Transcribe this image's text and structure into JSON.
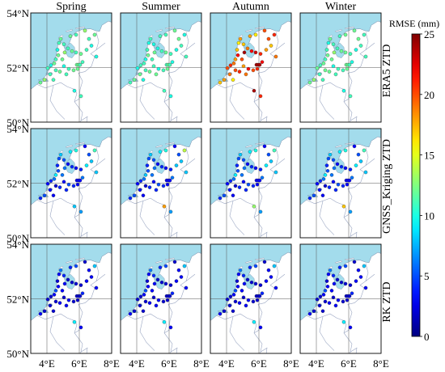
{
  "season_titles": [
    "Spring",
    "Summer",
    "Autumn",
    "Winter"
  ],
  "row_labels": [
    "ERA5 ZTD",
    "GNSS_Kriging ZTD",
    "RK ZTD"
  ],
  "lat_ticks": [
    "54°N",
    "52°N",
    "50°N"
  ],
  "lon_ticks": [
    "4°E",
    "6°E",
    "8°E"
  ],
  "colorbar": {
    "title": "RMSE (mm)",
    "ticks": [
      "25",
      "20",
      "15",
      "10",
      "5",
      "0"
    ],
    "min": 0,
    "max": 25,
    "colormap": "jet"
  },
  "colors": {
    "sea": "#a3dcec",
    "land": "#ffffff",
    "border": "#9aa6c2",
    "frame": "#000000",
    "grid": "#555555"
  },
  "chart_data": {
    "type": "scatter",
    "description_type": "map grid, 3 rows x 4 seasons; each dot colored by RMSE",
    "lon_range": [
      3,
      8
    ],
    "lat_range": [
      50,
      54
    ],
    "stations": [
      [
        4.05,
        51.98
      ],
      [
        4.25,
        52.08
      ],
      [
        4.45,
        52.15
      ],
      [
        4.55,
        52.3
      ],
      [
        4.7,
        52.45
      ],
      [
        4.65,
        52.65
      ],
      [
        4.75,
        52.9
      ],
      [
        4.85,
        53.05
      ],
      [
        5.1,
        52.55
      ],
      [
        5.3,
        52.7
      ],
      [
        5.55,
        52.6
      ],
      [
        5.8,
        52.55
      ],
      [
        6.1,
        52.5
      ],
      [
        6.45,
        52.65
      ],
      [
        6.75,
        52.8
      ],
      [
        6.6,
        53.05
      ],
      [
        6.95,
        53.2
      ],
      [
        5.8,
        53.2
      ],
      [
        5.45,
        53.15
      ],
      [
        6.35,
        53.35
      ],
      [
        7.05,
        52.4
      ],
      [
        6.2,
        52.2
      ],
      [
        5.9,
        51.95
      ],
      [
        5.65,
        51.9
      ],
      [
        5.35,
        51.95
      ],
      [
        5.05,
        52.05
      ],
      [
        4.8,
        51.85
      ],
      [
        4.55,
        51.9
      ],
      [
        4.2,
        51.75
      ],
      [
        3.85,
        51.55
      ],
      [
        3.6,
        51.45
      ],
      [
        4.4,
        51.55
      ],
      [
        5.7,
        51.15
      ],
      [
        6.1,
        50.95
      ],
      [
        5.85,
        52.1
      ],
      [
        5.95,
        52.1
      ],
      [
        6.05,
        52.1
      ],
      [
        5.2,
        51.75
      ],
      [
        4.95,
        52.3
      ],
      [
        5.05,
        52.85
      ]
    ],
    "series": [
      {
        "name": "ERA5 ZTD",
        "values": [
          [
            11,
            10,
            12,
            11,
            12,
            10,
            11,
            12,
            13,
            11,
            12,
            11,
            12,
            11,
            10,
            11,
            12,
            11,
            12,
            13,
            10,
            11,
            12,
            12,
            11,
            10,
            12,
            11,
            11,
            13,
            12,
            11,
            10,
            11,
            12,
            12,
            11,
            11,
            12,
            11
          ],
          [
            10,
            11,
            11,
            10,
            12,
            11,
            10,
            11,
            12,
            10,
            11,
            12,
            11,
            10,
            11,
            12,
            10,
            11,
            11,
            12,
            11,
            10,
            12,
            11,
            10,
            11,
            12,
            11,
            12,
            12,
            11,
            10,
            11,
            10,
            11,
            12,
            11,
            12,
            11,
            10
          ],
          [
            20,
            21,
            19,
            18,
            22,
            17,
            16,
            18,
            24,
            19,
            22,
            23,
            21,
            18,
            17,
            20,
            21,
            16,
            18,
            20,
            19,
            22,
            21,
            20,
            22,
            18,
            21,
            20,
            19,
            18,
            17,
            16,
            24,
            21,
            24,
            24,
            24,
            19,
            20,
            17
          ],
          [
            12,
            11,
            12,
            11,
            12,
            11,
            10,
            12,
            13,
            11,
            12,
            12,
            11,
            10,
            11,
            12,
            11,
            12,
            11,
            12,
            11,
            10,
            12,
            11,
            11,
            10,
            12,
            12,
            11,
            13,
            12,
            11,
            10,
            11,
            12,
            12,
            11,
            11,
            12,
            11
          ]
        ]
      },
      {
        "name": "GNSS_Kriging ZTD",
        "values": [
          [
            3,
            4,
            6,
            9,
            5,
            4,
            5,
            8,
            6,
            3,
            4,
            3,
            4,
            9,
            8,
            5,
            11,
            10,
            9,
            3,
            8,
            6,
            3,
            4,
            5,
            3,
            4,
            2,
            3,
            5,
            4,
            3,
            8,
            7,
            3,
            3,
            3,
            4,
            6,
            5
          ],
          [
            3,
            4,
            6,
            8,
            5,
            4,
            5,
            8,
            6,
            3,
            4,
            3,
            4,
            8,
            8,
            5,
            14,
            10,
            9,
            3,
            8,
            6,
            3,
            4,
            5,
            3,
            4,
            2,
            3,
            5,
            4,
            3,
            18,
            7,
            3,
            3,
            3,
            4,
            6,
            5
          ],
          [
            3,
            4,
            6,
            9,
            5,
            4,
            5,
            8,
            6,
            3,
            4,
            3,
            4,
            9,
            8,
            5,
            11,
            10,
            9,
            3,
            8,
            6,
            3,
            4,
            5,
            3,
            4,
            2,
            3,
            5,
            4,
            3,
            13,
            7,
            3,
            3,
            3,
            4,
            6,
            5
          ],
          [
            3,
            4,
            6,
            9,
            5,
            4,
            5,
            8,
            6,
            3,
            4,
            3,
            4,
            9,
            8,
            5,
            11,
            10,
            9,
            3,
            8,
            6,
            3,
            4,
            5,
            3,
            4,
            2,
            3,
            5,
            4,
            3,
            17,
            7,
            3,
            3,
            3,
            4,
            6,
            5
          ]
        ]
      },
      {
        "name": "RK ZTD",
        "values": [
          [
            2,
            2,
            3,
            5,
            3,
            2,
            3,
            6,
            3,
            2,
            2,
            2,
            2,
            3,
            3,
            3,
            8,
            5,
            4,
            2,
            3,
            4,
            2,
            2,
            3,
            2,
            3,
            2,
            2,
            2,
            3,
            2,
            9,
            3,
            2,
            2,
            2,
            3,
            3,
            4
          ],
          [
            2,
            2,
            3,
            5,
            3,
            2,
            3,
            6,
            3,
            2,
            2,
            2,
            2,
            3,
            3,
            3,
            8,
            5,
            4,
            2,
            3,
            4,
            2,
            2,
            3,
            2,
            3,
            2,
            2,
            2,
            3,
            2,
            9,
            3,
            2,
            2,
            2,
            3,
            3,
            4
          ],
          [
            2,
            2,
            3,
            5,
            3,
            2,
            3,
            6,
            3,
            2,
            2,
            2,
            2,
            3,
            3,
            3,
            8,
            5,
            4,
            2,
            3,
            4,
            2,
            2,
            3,
            2,
            3,
            2,
            2,
            2,
            3,
            2,
            9,
            3,
            2,
            2,
            2,
            3,
            3,
            4
          ],
          [
            2,
            2,
            3,
            5,
            3,
            2,
            3,
            6,
            3,
            2,
            2,
            2,
            2,
            3,
            3,
            3,
            8,
            5,
            4,
            2,
            3,
            4,
            2,
            2,
            3,
            2,
            3,
            2,
            2,
            2,
            3,
            2,
            9,
            3,
            2,
            2,
            2,
            3,
            3,
            4
          ]
        ]
      }
    ]
  }
}
